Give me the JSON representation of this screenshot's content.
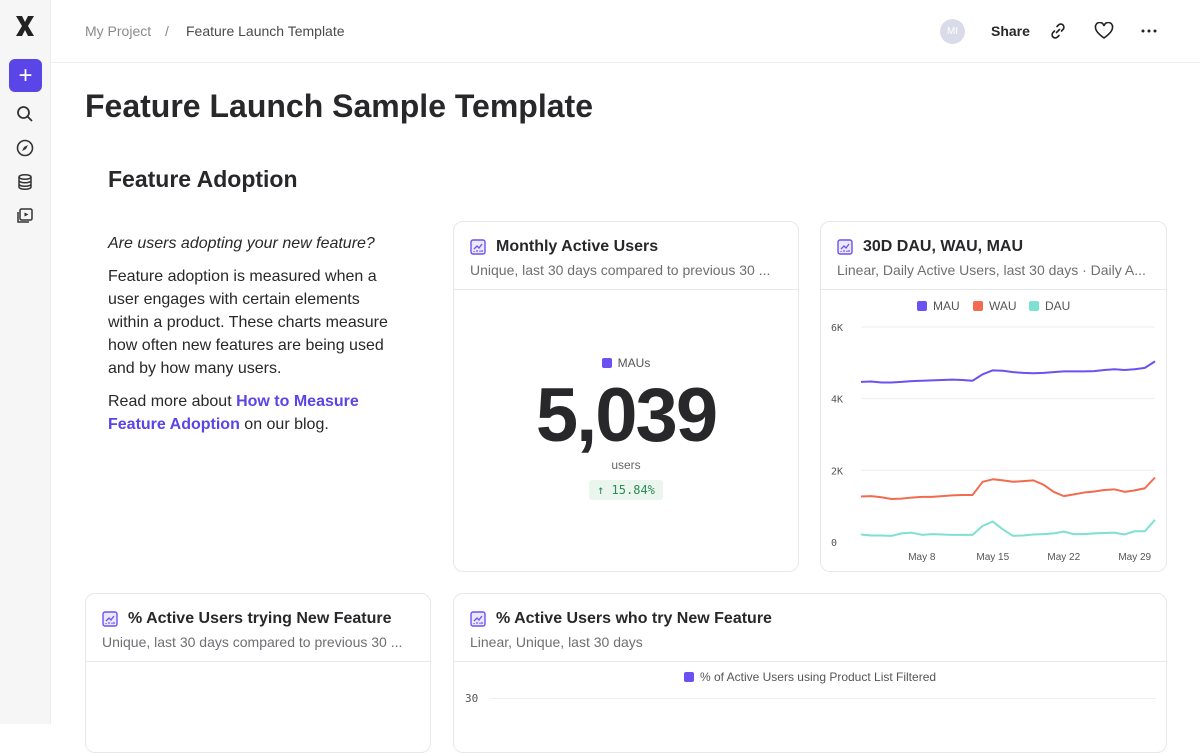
{
  "breadcrumb": {
    "project": "My Project",
    "separator": "/",
    "current": "Feature Launch Template"
  },
  "header": {
    "avatar": "MI",
    "share": "Share"
  },
  "page_title": "Feature Launch Sample Template",
  "section_title": "Feature Adoption",
  "description": {
    "question": "Are users adopting your new feature?",
    "body": "Feature adoption is measured when a user engages with certain elements within a product. These charts measure how often new features are being used and by how many users.",
    "read_prefix": "Read more about ",
    "link": "How to Measure Feature Adoption",
    "read_suffix": " on our blog."
  },
  "colors": {
    "accent": "#5a45e6",
    "mau": "#6a52f2",
    "wau": "#f26b4f",
    "dau": "#7ee0d2",
    "positive": "#2e8b57"
  },
  "mau_card": {
    "title": "Monthly Active Users",
    "subtitle": "Unique, last 30 days compared to previous 30 ...",
    "legend": "MAUs",
    "value": "5,039",
    "unit": "users",
    "change": "↑ 15.84%"
  },
  "trend_card": {
    "title": "30D DAU, WAU, MAU",
    "subtitle": "Linear, Daily Active Users, last 30 days · Daily A..."
  },
  "card3": {
    "title": "% Active Users trying New Feature",
    "subtitle": "Unique, last 30 days compared to previous 30 ..."
  },
  "card4": {
    "title": "% Active Users who try New Feature",
    "subtitle": "Linear, Unique, last 30 days",
    "legend": "% of Active Users using Product List Filtered",
    "y_tick": "30"
  },
  "chart_data": {
    "type": "line",
    "x": [
      "May 2",
      "May 3",
      "May 4",
      "May 5",
      "May 6",
      "May 7",
      "May 8",
      "May 9",
      "May 10",
      "May 11",
      "May 12",
      "May 13",
      "May 14",
      "May 15",
      "May 16",
      "May 17",
      "May 18",
      "May 19",
      "May 20",
      "May 21",
      "May 22",
      "May 23",
      "May 24",
      "May 25",
      "May 26",
      "May 27",
      "May 28",
      "May 29",
      "May 30",
      "May 31"
    ],
    "x_ticks": [
      "May 8",
      "May 15",
      "May 22",
      "May 29"
    ],
    "y_ticks": [
      "0",
      "2K",
      "4K",
      "6K"
    ],
    "ylim": [
      0,
      6000
    ],
    "grid": true,
    "legend_position": "top",
    "series": [
      {
        "name": "MAU",
        "values": [
          4470,
          4480,
          4450,
          4450,
          4470,
          4490,
          4500,
          4510,
          4520,
          4530,
          4520,
          4500,
          4680,
          4790,
          4780,
          4740,
          4720,
          4710,
          4720,
          4740,
          4760,
          4760,
          4760,
          4770,
          4800,
          4820,
          4800,
          4820,
          4860,
          5040
        ]
      },
      {
        "name": "WAU",
        "values": [
          1270,
          1280,
          1250,
          1200,
          1210,
          1240,
          1260,
          1260,
          1280,
          1300,
          1310,
          1310,
          1680,
          1750,
          1720,
          1680,
          1700,
          1720,
          1600,
          1400,
          1280,
          1330,
          1380,
          1410,
          1450,
          1470,
          1400,
          1440,
          1500,
          1800
        ]
      },
      {
        "name": "DAU",
        "values": [
          210,
          180,
          180,
          170,
          240,
          260,
          200,
          220,
          210,
          200,
          200,
          200,
          450,
          570,
          350,
          170,
          180,
          210,
          220,
          240,
          290,
          220,
          220,
          240,
          250,
          260,
          210,
          300,
          300,
          620
        ]
      }
    ]
  }
}
